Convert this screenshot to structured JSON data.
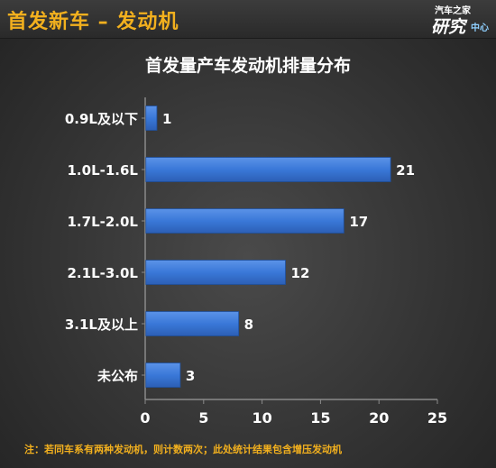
{
  "header": {
    "title": "首发新车 – 发动机",
    "logo_top": "汽车之家",
    "logo_main": "研究",
    "logo_sub": "中心"
  },
  "chart_data": {
    "type": "bar",
    "orientation": "horizontal",
    "title": "首发量产车发动机排量分布",
    "categories": [
      "0.9L及以下",
      "1.0L-1.6L",
      "1.7L-2.0L",
      "2.1L-3.0L",
      "3.1L及以上",
      "未公布"
    ],
    "values": [
      1,
      21,
      17,
      12,
      8,
      3
    ],
    "xlim": [
      0,
      25
    ],
    "xticks": [
      0,
      5,
      10,
      15,
      20,
      25
    ],
    "xlabel": "",
    "ylabel": "",
    "grid": false,
    "bar_color": "#3a78d8",
    "label_color": "#ffffff"
  },
  "footnote": "注：若同车系有两种发动机，则计数两次；此处统计结果包含增压发动机"
}
